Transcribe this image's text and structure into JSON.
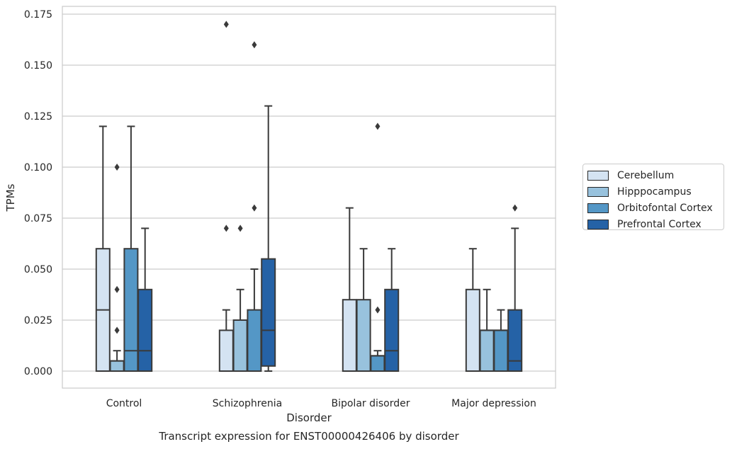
{
  "chart_data": {
    "type": "boxplot",
    "title": "",
    "caption": "Transcript expression for ENST00000426406 by disorder",
    "xlabel": "Disorder",
    "ylabel": "TPMs",
    "ylim": [
      -0.0083,
      0.1795
    ],
    "yticks": [
      "0.000",
      "0.025",
      "0.050",
      "0.075",
      "0.100",
      "0.125",
      "0.150",
      "0.175"
    ],
    "grid": true,
    "legend_position": "right",
    "categories": [
      "Control",
      "Schizophrenia",
      "Bipolar disorder",
      "Major depression"
    ],
    "series": [
      {
        "name": "Cerebellum",
        "color": "#d4e3f2",
        "boxes": [
          {
            "whislo": 0.0,
            "q1": 0.0,
            "med": 0.03,
            "q3": 0.06,
            "whishi": 0.12,
            "fliers": []
          },
          {
            "whislo": 0.0,
            "q1": 0.0,
            "med": 0.0,
            "q3": 0.02,
            "whishi": 0.03,
            "fliers": [
              0.07,
              0.17
            ]
          },
          {
            "whislo": 0.0,
            "q1": 0.0,
            "med": 0.0,
            "q3": 0.035,
            "whishi": 0.08,
            "fliers": []
          },
          {
            "whislo": 0.0,
            "q1": 0.0,
            "med": 0.0,
            "q3": 0.04,
            "whishi": 0.06,
            "fliers": []
          }
        ]
      },
      {
        "name": "Hipppocampus",
        "color": "#98c2dd",
        "boxes": [
          {
            "whislo": 0.0,
            "q1": 0.0,
            "med": 0.005,
            "q3": 0.005,
            "whishi": 0.01,
            "fliers": [
              0.02,
              0.04,
              0.1
            ]
          },
          {
            "whislo": 0.0,
            "q1": 0.0,
            "med": 0.0,
            "q3": 0.025,
            "whishi": 0.04,
            "fliers": [
              0.07
            ]
          },
          {
            "whislo": 0.0,
            "q1": 0.0,
            "med": 0.0,
            "q3": 0.035,
            "whishi": 0.06,
            "fliers": []
          },
          {
            "whislo": 0.0,
            "q1": 0.0,
            "med": 0.02,
            "q3": 0.02,
            "whishi": 0.04,
            "fliers": []
          }
        ]
      },
      {
        "name": "Orbitofontal Cortex",
        "color": "#5497c6",
        "boxes": [
          {
            "whislo": 0.0,
            "q1": 0.0,
            "med": 0.01,
            "q3": 0.06,
            "whishi": 0.12,
            "fliers": []
          },
          {
            "whislo": 0.0,
            "q1": 0.0,
            "med": 0.0,
            "q3": 0.03,
            "whishi": 0.05,
            "fliers": [
              0.08,
              0.16
            ]
          },
          {
            "whislo": 0.0,
            "q1": 0.0,
            "med": 0.0075,
            "q3": 0.0075,
            "whishi": 0.01,
            "fliers": [
              0.03,
              0.12
            ]
          },
          {
            "whislo": 0.0,
            "q1": 0.0,
            "med": 0.02,
            "q3": 0.02,
            "whishi": 0.03,
            "fliers": []
          }
        ]
      },
      {
        "name": "Prefrontal Cortex",
        "color": "#2562a6",
        "boxes": [
          {
            "whislo": 0.0,
            "q1": 0.0,
            "med": 0.01,
            "q3": 0.04,
            "whishi": 0.07,
            "fliers": []
          },
          {
            "whislo": 0.0,
            "q1": 0.0025,
            "med": 0.02,
            "q3": 0.055,
            "whishi": 0.13,
            "fliers": []
          },
          {
            "whislo": 0.0,
            "q1": 0.0,
            "med": 0.01,
            "q3": 0.04,
            "whishi": 0.06,
            "fliers": []
          },
          {
            "whislo": 0.0,
            "q1": 0.0,
            "med": 0.005,
            "q3": 0.03,
            "whishi": 0.07,
            "fliers": [
              0.08
            ]
          }
        ]
      }
    ]
  }
}
